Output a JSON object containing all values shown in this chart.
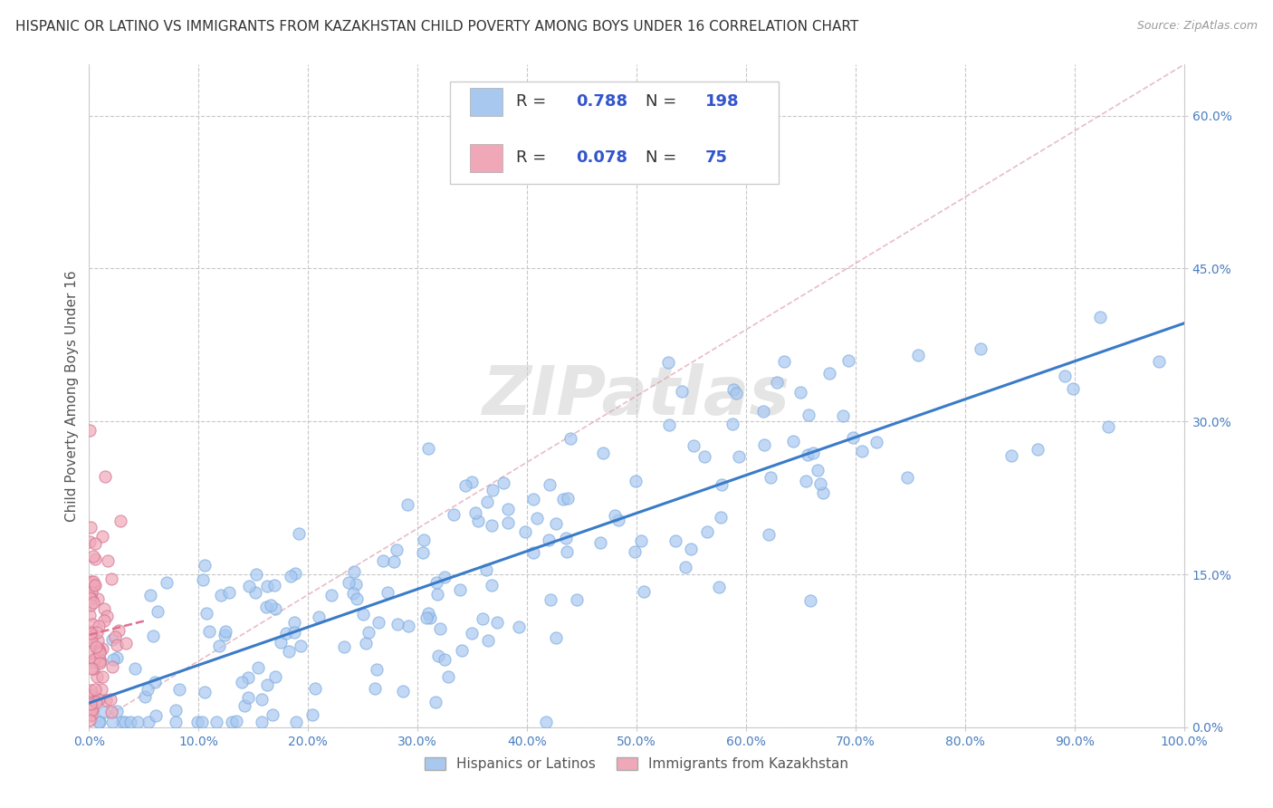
{
  "title": "HISPANIC OR LATINO VS IMMIGRANTS FROM KAZAKHSTAN CHILD POVERTY AMONG BOYS UNDER 16 CORRELATION CHART",
  "source": "Source: ZipAtlas.com",
  "ylabel": "Child Poverty Among Boys Under 16",
  "xlim": [
    0.0,
    1.0
  ],
  "ylim": [
    0.0,
    0.65
  ],
  "x_ticks": [
    0.0,
    0.1,
    0.2,
    0.3,
    0.4,
    0.5,
    0.6,
    0.7,
    0.8,
    0.9,
    1.0
  ],
  "x_tick_labels": [
    "0.0%",
    "10.0%",
    "20.0%",
    "30.0%",
    "40.0%",
    "50.0%",
    "60.0%",
    "70.0%",
    "80.0%",
    "90.0%",
    "100.0%"
  ],
  "y_ticks": [
    0.0,
    0.15,
    0.3,
    0.45,
    0.6
  ],
  "y_tick_labels": [
    "0.0%",
    "15.0%",
    "30.0%",
    "45.0%",
    "60.0%"
  ],
  "hispanic_R": 0.788,
  "hispanic_N": 198,
  "kazakh_R": 0.078,
  "kazakh_N": 75,
  "hispanic_color": "#a8c8f0",
  "kazakh_color": "#f0a8b8",
  "hispanic_line_color": "#3a7bc8",
  "kazakh_line_color": "#e07090",
  "diag_line_color": "#e0a0b0",
  "background_color": "#ffffff",
  "grid_color": "#c8c8c8",
  "watermark": "ZIPatlas",
  "legend_labels": [
    "Hispanics or Latinos",
    "Immigrants from Kazakhstan"
  ],
  "title_fontsize": 11,
  "axis_label_fontsize": 11,
  "tick_label_color": "#4a7fc0",
  "legend_text_color": "#3355cc"
}
